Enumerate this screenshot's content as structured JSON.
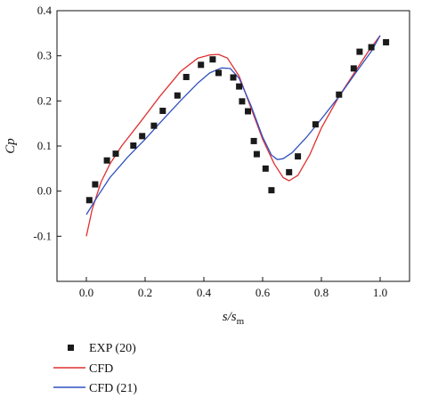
{
  "chart_data": {
    "type": "line",
    "xlabel": "s/s",
    "xlabel_sub": "m",
    "ylabel": "Cp",
    "xlim": [
      -0.1,
      1.1
    ],
    "ylim": [
      -0.2,
      0.4
    ],
    "xticks": [
      "0.0",
      "0.2",
      "0.4",
      "0.6",
      "0.8",
      "1.0"
    ],
    "yticks": [
      "-0.1",
      "0.0",
      "0.1",
      "0.2",
      "0.3",
      "0.4"
    ],
    "xtick_values": [
      0.0,
      0.2,
      0.4,
      0.6,
      0.8,
      1.0
    ],
    "ytick_values": [
      -0.1,
      0.0,
      0.1,
      0.2,
      0.3,
      0.4
    ],
    "legend_position": "bottom-left",
    "series": [
      {
        "name": "EXP (20)",
        "kind": "scatter",
        "marker": "square",
        "color": "#1a1a1a",
        "points": [
          [
            0.01,
            -0.02
          ],
          [
            0.03,
            0.015
          ],
          [
            0.07,
            0.068
          ],
          [
            0.1,
            0.083
          ],
          [
            0.16,
            0.101
          ],
          [
            0.19,
            0.122
          ],
          [
            0.23,
            0.145
          ],
          [
            0.26,
            0.178
          ],
          [
            0.31,
            0.212
          ],
          [
            0.34,
            0.253
          ],
          [
            0.39,
            0.28
          ],
          [
            0.43,
            0.292
          ],
          [
            0.45,
            0.262
          ],
          [
            0.5,
            0.252
          ],
          [
            0.52,
            0.232
          ],
          [
            0.53,
            0.199
          ],
          [
            0.55,
            0.177
          ],
          [
            0.57,
            0.111
          ],
          [
            0.58,
            0.082
          ],
          [
            0.61,
            0.05
          ],
          [
            0.63,
            0.002
          ],
          [
            0.69,
            0.042
          ],
          [
            0.72,
            0.077
          ],
          [
            0.78,
            0.148
          ],
          [
            0.86,
            0.214
          ],
          [
            0.91,
            0.272
          ],
          [
            0.93,
            0.309
          ],
          [
            0.97,
            0.319
          ],
          [
            1.02,
            0.33
          ]
        ]
      },
      {
        "name": "CFD",
        "kind": "line",
        "color": "#e03030",
        "points": [
          [
            0.0,
            -0.1
          ],
          [
            0.02,
            -0.04
          ],
          [
            0.05,
            0.02
          ],
          [
            0.08,
            0.06
          ],
          [
            0.12,
            0.1
          ],
          [
            0.18,
            0.15
          ],
          [
            0.25,
            0.21
          ],
          [
            0.32,
            0.265
          ],
          [
            0.38,
            0.295
          ],
          [
            0.42,
            0.302
          ],
          [
            0.45,
            0.303
          ],
          [
            0.48,
            0.295
          ],
          [
            0.52,
            0.255
          ],
          [
            0.56,
            0.185
          ],
          [
            0.6,
            0.115
          ],
          [
            0.64,
            0.06
          ],
          [
            0.67,
            0.03
          ],
          [
            0.69,
            0.023
          ],
          [
            0.72,
            0.035
          ],
          [
            0.76,
            0.08
          ],
          [
            0.8,
            0.14
          ],
          [
            0.86,
            0.21
          ],
          [
            0.91,
            0.26
          ],
          [
            0.96,
            0.31
          ],
          [
            1.0,
            0.345
          ]
        ]
      },
      {
        "name": "CFD (21)",
        "kind": "line",
        "color": "#3050c0",
        "points": [
          [
            0.0,
            -0.052
          ],
          [
            0.04,
            -0.01
          ],
          [
            0.08,
            0.03
          ],
          [
            0.14,
            0.075
          ],
          [
            0.2,
            0.115
          ],
          [
            0.26,
            0.158
          ],
          [
            0.32,
            0.2
          ],
          [
            0.38,
            0.24
          ],
          [
            0.42,
            0.262
          ],
          [
            0.46,
            0.273
          ],
          [
            0.49,
            0.272
          ],
          [
            0.52,
            0.25
          ],
          [
            0.56,
            0.19
          ],
          [
            0.6,
            0.12
          ],
          [
            0.63,
            0.08
          ],
          [
            0.65,
            0.07
          ],
          [
            0.67,
            0.072
          ],
          [
            0.7,
            0.085
          ],
          [
            0.75,
            0.12
          ],
          [
            0.8,
            0.16
          ],
          [
            0.86,
            0.21
          ],
          [
            0.92,
            0.265
          ],
          [
            0.97,
            0.31
          ],
          [
            1.0,
            0.345
          ]
        ]
      }
    ]
  }
}
